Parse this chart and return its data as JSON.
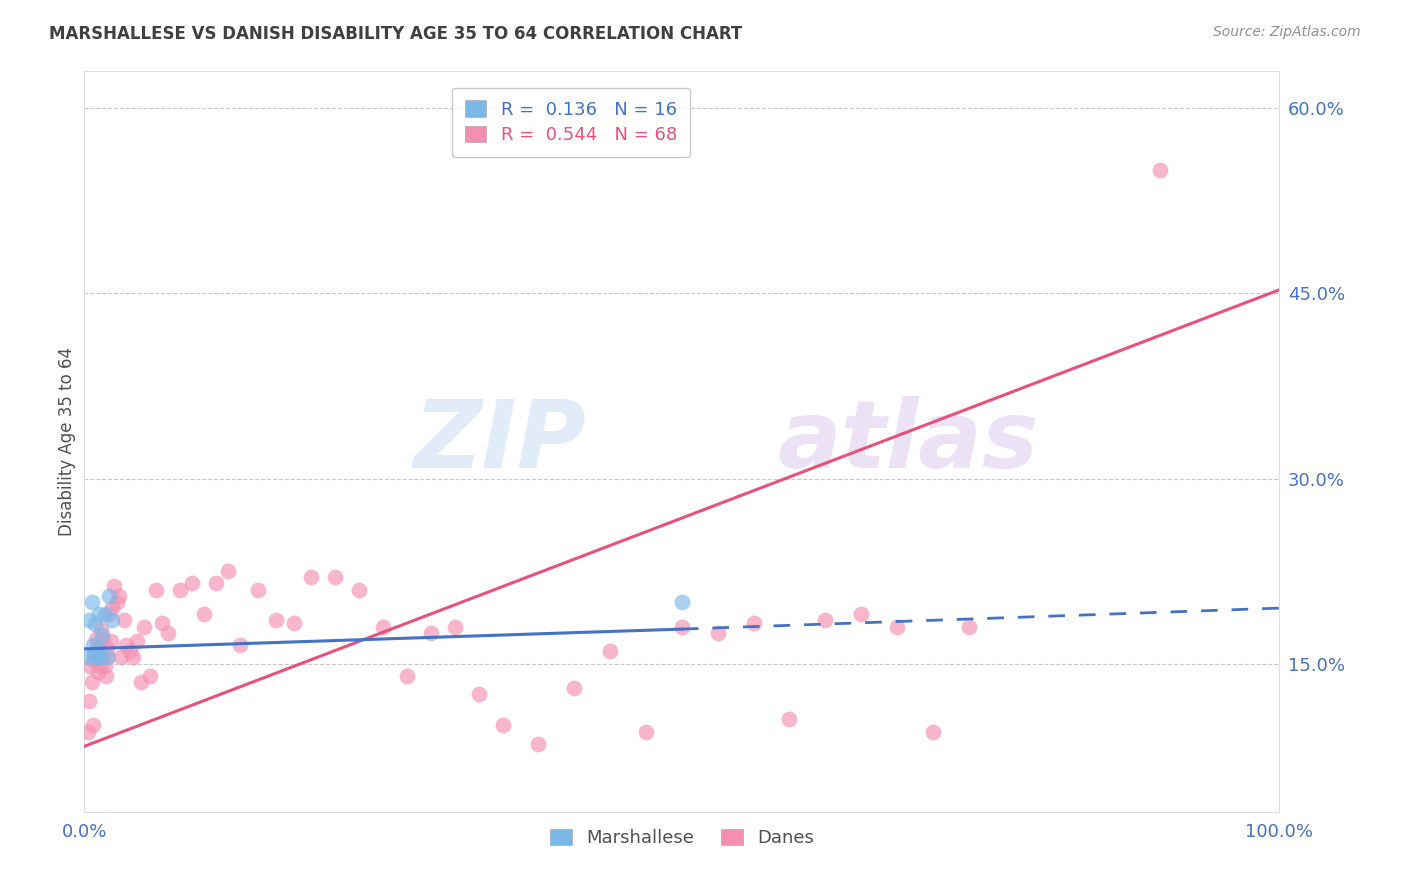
{
  "title": "MARSHALLESE VS DANISH DISABILITY AGE 35 TO 64 CORRELATION CHART",
  "source": "Source: ZipAtlas.com",
  "ylabel": "Disability Age 35 to 64",
  "xlim": [
    0.0,
    1.0
  ],
  "ylim": [
    0.03,
    0.63
  ],
  "xtick_labels": [
    "0.0%",
    "",
    "",
    "",
    "100.0%"
  ],
  "ytick_labels": [
    "15.0%",
    "30.0%",
    "45.0%",
    "60.0%"
  ],
  "ytick_values": [
    0.15,
    0.3,
    0.45,
    0.6
  ],
  "marshallese_R": 0.136,
  "marshallese_N": 16,
  "danes_R": 0.544,
  "danes_N": 68,
  "marshallese_color": "#7ab8e8",
  "danes_color": "#f48fb1",
  "trend_marshallese_color": "#4472c4",
  "trend_danes_color": "#e8517a",
  "background_color": "#ffffff",
  "grid_color": "#c8c8c8",
  "title_color": "#404040",
  "axis_label_color": "#505050",
  "tick_label_color": "#4472c4",
  "source_color": "#909090",
  "marshallese_x": [
    0.003,
    0.004,
    0.006,
    0.007,
    0.008,
    0.009,
    0.01,
    0.011,
    0.012,
    0.013,
    0.015,
    0.017,
    0.019,
    0.021,
    0.023,
    0.5
  ],
  "marshallese_y": [
    0.155,
    0.185,
    0.2,
    0.165,
    0.158,
    0.182,
    0.155,
    0.162,
    0.19,
    0.155,
    0.173,
    0.19,
    0.155,
    0.205,
    0.185,
    0.2
  ],
  "danes_x": [
    0.003,
    0.004,
    0.005,
    0.006,
    0.007,
    0.008,
    0.009,
    0.01,
    0.011,
    0.012,
    0.013,
    0.014,
    0.015,
    0.016,
    0.017,
    0.018,
    0.019,
    0.02,
    0.021,
    0.022,
    0.023,
    0.025,
    0.027,
    0.029,
    0.031,
    0.033,
    0.035,
    0.038,
    0.041,
    0.044,
    0.047,
    0.05,
    0.055,
    0.06,
    0.065,
    0.07,
    0.08,
    0.09,
    0.1,
    0.11,
    0.12,
    0.13,
    0.145,
    0.16,
    0.175,
    0.19,
    0.21,
    0.23,
    0.25,
    0.27,
    0.29,
    0.31,
    0.33,
    0.35,
    0.38,
    0.41,
    0.44,
    0.47,
    0.5,
    0.53,
    0.56,
    0.59,
    0.62,
    0.65,
    0.68,
    0.71,
    0.74,
    0.9
  ],
  "danes_y": [
    0.095,
    0.12,
    0.148,
    0.135,
    0.1,
    0.153,
    0.16,
    0.17,
    0.143,
    0.165,
    0.148,
    0.178,
    0.155,
    0.17,
    0.148,
    0.14,
    0.163,
    0.155,
    0.19,
    0.168,
    0.195,
    0.213,
    0.2,
    0.205,
    0.155,
    0.185,
    0.165,
    0.16,
    0.155,
    0.168,
    0.135,
    0.18,
    0.14,
    0.21,
    0.183,
    0.175,
    0.21,
    0.215,
    0.19,
    0.215,
    0.225,
    0.165,
    0.21,
    0.185,
    0.183,
    0.22,
    0.22,
    0.21,
    0.18,
    0.14,
    0.175,
    0.18,
    0.125,
    0.1,
    0.085,
    0.13,
    0.16,
    0.095,
    0.18,
    0.175,
    0.183,
    0.105,
    0.185,
    0.19,
    0.18,
    0.095,
    0.18,
    0.55
  ],
  "danes_trend_x0": 0.0,
  "danes_trend_y0": 0.083,
  "danes_trend_x1": 1.0,
  "danes_trend_y1": 0.453,
  "marsh_trend_x0": 0.0,
  "marsh_trend_y0": 0.162,
  "marsh_trend_x1": 0.5,
  "marsh_trend_x1_solid_end": 0.5,
  "marsh_trend_y1": 0.178,
  "marsh_trend_y_end": 0.195,
  "legend_box_color": "#ffffff"
}
